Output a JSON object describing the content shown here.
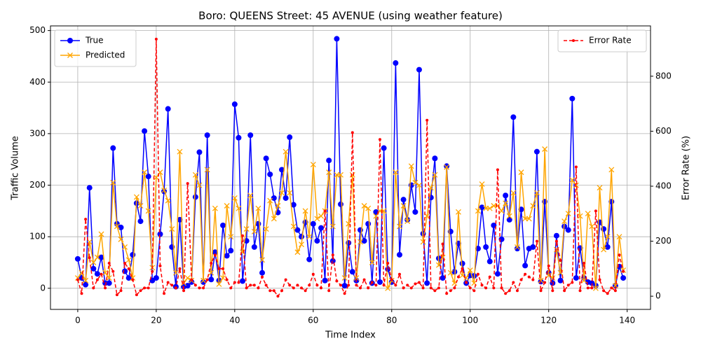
{
  "chart_data": {
    "type": "line",
    "title": "Boro: QUEENS Street: 45 AVENUE (using weather feature)",
    "xlabel": "Time Index",
    "ylabel": "Traffic Volume",
    "y2label": "Error Rate (%)",
    "x": [
      0,
      1,
      2,
      3,
      4,
      5,
      6,
      7,
      8,
      9,
      10,
      11,
      12,
      13,
      14,
      15,
      16,
      17,
      18,
      19,
      20,
      21,
      22,
      23,
      24,
      25,
      26,
      27,
      28,
      29,
      30,
      31,
      32,
      33,
      34,
      35,
      36,
      37,
      38,
      39,
      40,
      41,
      42,
      43,
      44,
      45,
      46,
      47,
      48,
      49,
      50,
      51,
      52,
      53,
      54,
      55,
      56,
      57,
      58,
      59,
      60,
      61,
      62,
      63,
      64,
      65,
      66,
      67,
      68,
      69,
      70,
      71,
      72,
      73,
      74,
      75,
      76,
      77,
      78,
      79,
      80,
      81,
      82,
      83,
      84,
      85,
      86,
      87,
      88,
      89,
      90,
      91,
      92,
      93,
      94,
      95,
      96,
      97,
      98,
      99,
      100,
      101,
      102,
      103,
      104,
      105,
      106,
      107,
      108,
      109,
      110,
      111,
      112,
      113,
      114,
      115,
      116,
      117,
      118,
      119,
      120,
      121,
      122,
      123,
      124,
      125,
      126,
      127,
      128,
      129,
      130,
      131,
      132,
      133,
      134,
      135,
      136,
      137,
      138,
      139
    ],
    "series": [
      {
        "name": "True",
        "color": "#0000ff",
        "marker": "circle",
        "axis": "y",
        "values": [
          57,
          20,
          7,
          195,
          38,
          28,
          60,
          10,
          10,
          272,
          125,
          118,
          33,
          20,
          65,
          165,
          130,
          305,
          217,
          15,
          20,
          105,
          188,
          348,
          80,
          3,
          133,
          3,
          5,
          12,
          177,
          264,
          12,
          297,
          17,
          70,
          15,
          122,
          63,
          73,
          357,
          292,
          14,
          92,
          297,
          80,
          125,
          30,
          252,
          221,
          175,
          147,
          230,
          175,
          293,
          162,
          113,
          100,
          128,
          56,
          125,
          92,
          117,
          15,
          248,
          53,
          484,
          163,
          5,
          88,
          32,
          15,
          113,
          92,
          125,
          10,
          148,
          12,
          272,
          37,
          12,
          437,
          65,
          172,
          133,
          200,
          148,
          424,
          106,
          10,
          176,
          252,
          58,
          20,
          237,
          110,
          32,
          87,
          48,
          10,
          25,
          24,
          77,
          157,
          80,
          52,
          122,
          28,
          95,
          180,
          133,
          332,
          77,
          153,
          44,
          77,
          80,
          265,
          13,
          168,
          30,
          10,
          102,
          15,
          120,
          113,
          368,
          20,
          78,
          20,
          12,
          10,
          5,
          128,
          115,
          80,
          168,
          5,
          42,
          20
        ]
      },
      {
        "name": "Predicted",
        "color": "#ffa500",
        "marker": "x",
        "axis": "y",
        "values": [
          20,
          30,
          15,
          90,
          50,
          60,
          105,
          30,
          20,
          205,
          120,
          95,
          80,
          55,
          20,
          177,
          160,
          225,
          150,
          40,
          215,
          225,
          190,
          170,
          115,
          30,
          265,
          10,
          20,
          15,
          220,
          200,
          15,
          230,
          30,
          155,
          8,
          20,
          160,
          100,
          175,
          155,
          70,
          115,
          180,
          110,
          155,
          55,
          115,
          170,
          135,
          160,
          185,
          265,
          185,
          120,
          70,
          85,
          150,
          100,
          240,
          135,
          140,
          150,
          225,
          120,
          220,
          220,
          20,
          125,
          220,
          20,
          90,
          160,
          155,
          50,
          140,
          150,
          150,
          0,
          15,
          225,
          120,
          160,
          130,
          237,
          205,
          200,
          90,
          140,
          195,
          220,
          45,
          60,
          235,
          30,
          10,
          148,
          25,
          20,
          35,
          10,
          150,
          202,
          155,
          155,
          160,
          160,
          150,
          165,
          140,
          185,
          80,
          225,
          135,
          135,
          160,
          185,
          15,
          270,
          25,
          20,
          75,
          30,
          130,
          145,
          210,
          200,
          140,
          15,
          145,
          120,
          0,
          195,
          75,
          100,
          230,
          5,
          100,
          35
        ]
      },
      {
        "name": "Error Rate",
        "color": "#ff0000",
        "marker": "dot",
        "dash": true,
        "axis": "y2",
        "values": [
          60,
          10,
          280,
          140,
          30,
          60,
          80,
          30,
          120,
          90,
          5,
          20,
          120,
          100,
          60,
          5,
          20,
          30,
          30,
          90,
          935,
          110,
          10,
          50,
          40,
          30,
          100,
          20,
          410,
          60,
          40,
          30,
          30,
          60,
          120,
          150,
          100,
          100,
          60,
          30,
          50,
          50,
          220,
          30,
          40,
          40,
          30,
          70,
          40,
          20,
          20,
          0,
          20,
          60,
          40,
          30,
          40,
          30,
          20,
          40,
          80,
          40,
          30,
          310,
          20,
          150,
          55,
          40,
          10,
          40,
          595,
          40,
          30,
          60,
          30,
          50,
          40,
          570,
          40,
          120,
          60,
          40,
          80,
          30,
          40,
          30,
          45,
          50,
          30,
          640,
          30,
          20,
          30,
          190,
          10,
          20,
          30,
          70,
          100,
          50,
          30,
          20,
          80,
          40,
          30,
          70,
          30,
          460,
          30,
          10,
          20,
          50,
          20,
          60,
          80,
          70,
          60,
          200,
          20,
          50,
          110,
          20,
          200,
          130,
          20,
          40,
          50,
          470,
          20,
          120,
          30,
          30,
          310,
          60,
          20,
          10,
          30,
          20,
          150,
          90
        ]
      }
    ],
    "xlim": [
      -6.95,
      145.95
    ],
    "xticks": [
      0,
      20,
      40,
      60,
      80,
      100,
      120,
      140
    ],
    "ylim": [
      -41,
      509
    ],
    "yticks": [
      0,
      100,
      200,
      300,
      400,
      500
    ],
    "y2lim": [
      -48,
      983
    ],
    "y2ticks": [
      0,
      200,
      400,
      600,
      800
    ],
    "grid": true,
    "legend": "upper left",
    "legend2": "upper right"
  }
}
